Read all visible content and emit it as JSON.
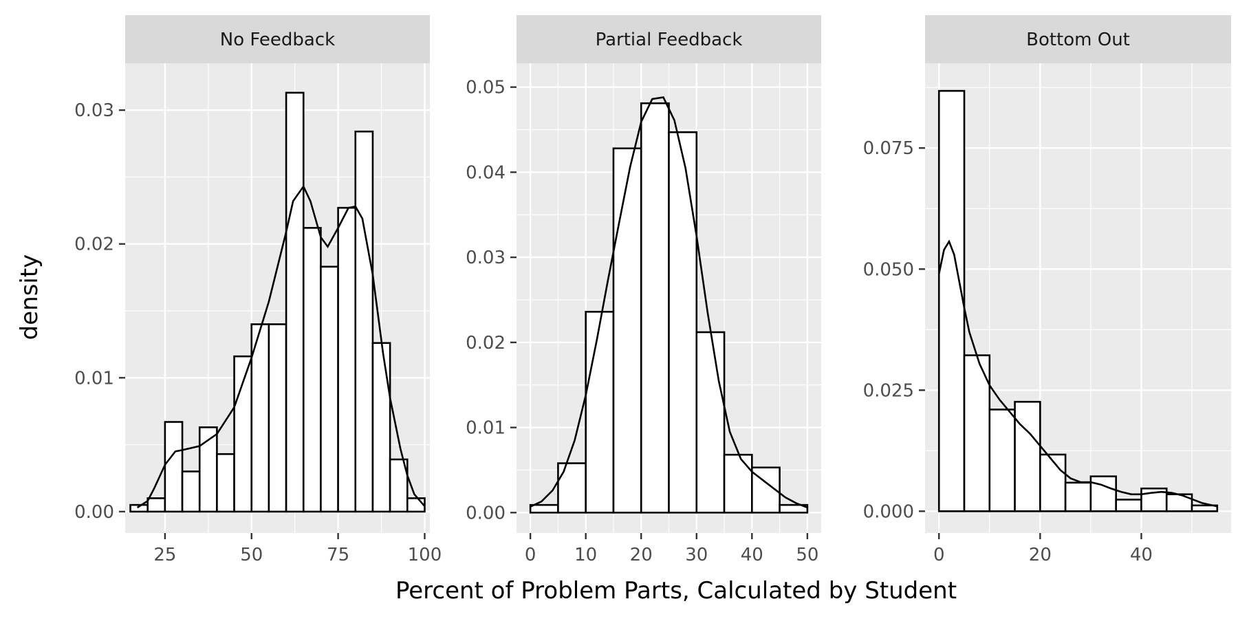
{
  "chart_data": {
    "type": "histogram-facets",
    "title": "",
    "xlabel": "Percent of Problem Parts, Calculated by Student",
    "ylabel": "density",
    "grid": true,
    "panels": [
      {
        "label": "No Feedback",
        "xlim": [
          13.5,
          101.5
        ],
        "ylim": [
          -0.0016,
          0.0335
        ],
        "x_ticks": [
          25,
          50,
          75,
          100
        ],
        "y_ticks": [
          0.0,
          0.01,
          0.02,
          0.03
        ],
        "y_tick_labels": [
          "0.00",
          "0.01",
          "0.02",
          "0.03"
        ],
        "bin_edges": [
          15,
          20,
          25,
          30,
          35,
          40,
          45,
          50,
          55,
          60,
          65,
          70,
          75,
          80,
          85,
          90,
          95,
          100
        ],
        "values": [
          0.0005,
          0.001,
          0.0067,
          0.003,
          0.0063,
          0.0043,
          0.0116,
          0.014,
          0.014,
          0.0313,
          0.0212,
          0.0183,
          0.0227,
          0.0284,
          0.0126,
          0.0039,
          0.001
        ],
        "density_x": [
          17,
          20,
          22,
          25,
          28,
          30,
          35,
          40,
          45,
          50,
          55,
          60,
          62,
          65,
          67,
          70,
          72,
          75,
          78,
          80,
          82,
          85,
          88,
          90,
          93,
          95,
          97,
          100
        ],
        "density_y": [
          0.0003,
          0.0008,
          0.0018,
          0.0035,
          0.0045,
          0.0046,
          0.0049,
          0.0058,
          0.0078,
          0.0115,
          0.0157,
          0.0209,
          0.0232,
          0.0243,
          0.0232,
          0.0205,
          0.0198,
          0.0212,
          0.0227,
          0.0228,
          0.0219,
          0.0177,
          0.0118,
          0.0085,
          0.0047,
          0.0027,
          0.0013,
          0.0004
        ]
      },
      {
        "label": "Partial Feedback",
        "xlim": [
          -2.5,
          52.5
        ],
        "ylim": [
          -0.0024,
          0.0528
        ],
        "x_ticks": [
          0,
          10,
          20,
          30,
          40,
          50
        ],
        "y_ticks": [
          0.0,
          0.01,
          0.02,
          0.03,
          0.04,
          0.05
        ],
        "y_tick_labels": [
          "0.00",
          "0.01",
          "0.02",
          "0.03",
          "0.04",
          "0.05"
        ],
        "bin_edges": [
          0,
          5,
          10,
          15,
          20,
          25,
          30,
          35,
          40,
          45,
          50
        ],
        "values": [
          0.0009,
          0.0058,
          0.0236,
          0.0428,
          0.0481,
          0.0447,
          0.0212,
          0.0068,
          0.0053,
          0.0009
        ],
        "density_x": [
          0,
          2,
          4,
          6,
          8,
          10,
          12,
          14,
          16,
          18,
          20,
          22,
          24,
          26,
          28,
          30,
          32,
          34,
          36,
          38,
          40,
          42,
          44,
          46,
          48,
          50
        ],
        "density_y": [
          0.0007,
          0.0013,
          0.0026,
          0.0048,
          0.0085,
          0.0138,
          0.0203,
          0.0273,
          0.034,
          0.0406,
          0.0459,
          0.0486,
          0.0488,
          0.0461,
          0.0405,
          0.0325,
          0.0235,
          0.0155,
          0.0095,
          0.0063,
          0.0048,
          0.0038,
          0.0028,
          0.0018,
          0.0011,
          0.0006
        ]
      },
      {
        "label": "Bottom Out",
        "xlim": [
          -2.75,
          57.75
        ],
        "ylim": [
          -0.0045,
          0.0925
        ],
        "x_ticks": [
          0,
          20,
          40
        ],
        "y_ticks": [
          0.0,
          0.025,
          0.05,
          0.075
        ],
        "y_tick_labels": [
          "0.000",
          "0.025",
          "0.050",
          "0.075"
        ],
        "bin_edges": [
          0,
          5,
          10,
          15,
          20,
          25,
          30,
          35,
          40,
          45,
          50,
          55
        ],
        "values": [
          0.0868,
          0.0322,
          0.021,
          0.0226,
          0.0117,
          0.0059,
          0.0072,
          0.0024,
          0.0047,
          0.0035,
          0.0012
        ],
        "density_x": [
          0,
          1,
          2,
          3,
          4,
          5,
          6,
          8,
          10,
          12,
          14,
          16,
          18,
          20,
          22,
          24,
          26,
          28,
          30,
          32,
          34,
          36,
          38,
          40,
          42,
          44,
          46,
          48,
          50,
          52,
          55
        ],
        "density_y": [
          0.049,
          0.054,
          0.0557,
          0.053,
          0.0475,
          0.042,
          0.037,
          0.0305,
          0.026,
          0.023,
          0.0205,
          0.018,
          0.016,
          0.0135,
          0.011,
          0.0085,
          0.0068,
          0.006,
          0.006,
          0.0055,
          0.0047,
          0.004,
          0.0035,
          0.0035,
          0.0038,
          0.004,
          0.0038,
          0.0033,
          0.0025,
          0.0017,
          0.001
        ]
      }
    ]
  }
}
